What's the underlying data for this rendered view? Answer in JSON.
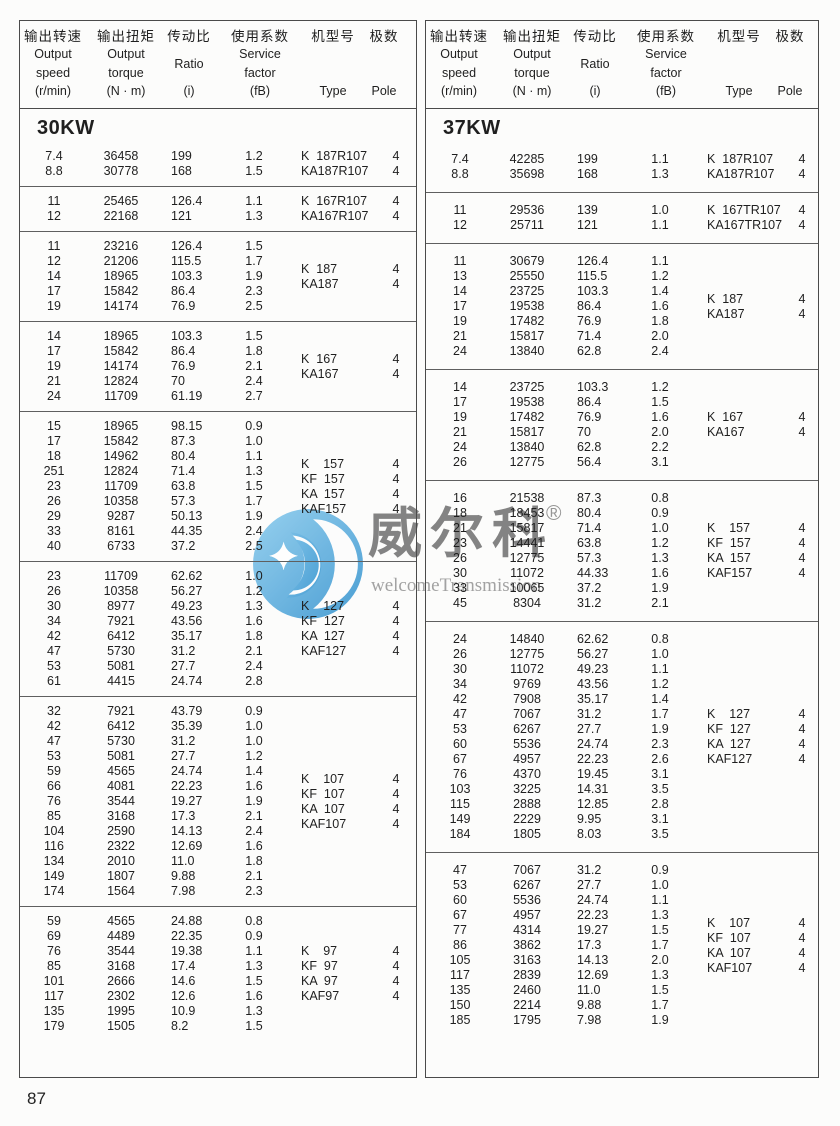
{
  "page": {
    "number": "87"
  },
  "watermark": {
    "brand_cn": "威尔科",
    "registered": "®",
    "brand_en": "welcomeTransmission",
    "logo_color_light": "#85c9ec",
    "logo_color_dark": "#3c96d0",
    "cn_text_color": "#6f6f6f",
    "en_text_color": "#a2a2a2",
    "logo_icon": "crescent-star-circle"
  },
  "header": {
    "columns": [
      {
        "cn": "输出转速",
        "lines": [
          "Output",
          "speed"
        ],
        "unit": "(r/min)",
        "key": "output-speed"
      },
      {
        "cn": "输出扭矩",
        "lines": [
          "Output",
          "torque"
        ],
        "unit": "(N · m)",
        "key": "output-torque"
      },
      {
        "cn": "传动比",
        "lines": [
          "Ratio"
        ],
        "unit": "(i)",
        "key": "ratio"
      },
      {
        "cn": "使用系数",
        "lines": [
          "Service",
          "factor"
        ],
        "unit": "(fB)",
        "key": "service-factor"
      },
      {
        "cn": "机型号",
        "lines": [],
        "unit": "Type",
        "key": "type"
      },
      {
        "cn": "极数",
        "lines": [],
        "unit": "Pole",
        "key": "pole"
      }
    ]
  },
  "sections": [
    {
      "title": "30KW",
      "blocks": [
        {
          "rows": [
            [
              "7.4",
              "36458",
              "199",
              "1.2"
            ],
            [
              "8.8",
              "30778",
              "168",
              "1.5"
            ]
          ],
          "types": [
            [
              "K  187R107",
              "4"
            ],
            [
              "KA187R107",
              "4"
            ]
          ]
        },
        {
          "rows": [
            [
              "11",
              "25465",
              "126.4",
              "1.1"
            ],
            [
              "12",
              "22168",
              "121",
              "1.3"
            ]
          ],
          "types": [
            [
              "K  167R107",
              "4"
            ],
            [
              "KA167R107",
              "4"
            ]
          ]
        },
        {
          "rows": [
            [
              "11",
              "23216",
              "126.4",
              "1.5"
            ],
            [
              "12",
              "21206",
              "115.5",
              "1.7"
            ],
            [
              "14",
              "18965",
              "103.3",
              "1.9"
            ],
            [
              "17",
              "15842",
              "86.4",
              "2.3"
            ],
            [
              "19",
              "14174",
              "76.9",
              "2.5"
            ]
          ],
          "types": [
            [
              "K  187",
              "4"
            ],
            [
              "KA187",
              "4"
            ]
          ]
        },
        {
          "rows": [
            [
              "14",
              "18965",
              "103.3",
              "1.5"
            ],
            [
              "17",
              "15842",
              "86.4",
              "1.8"
            ],
            [
              "19",
              "14174",
              "76.9",
              "2.1"
            ],
            [
              "21",
              "12824",
              "70",
              "2.4"
            ],
            [
              "24",
              "11709",
              "61.19",
              "2.7"
            ]
          ],
          "types": [
            [
              "K  167",
              "4"
            ],
            [
              "KA167",
              "4"
            ]
          ]
        },
        {
          "rows": [
            [
              "15",
              "18965",
              "98.15",
              "0.9"
            ],
            [
              "17",
              "15842",
              "87.3",
              "1.0"
            ],
            [
              "18",
              "14962",
              "80.4",
              "1.1"
            ],
            [
              "251",
              "12824",
              "71.4",
              "1.3"
            ],
            [
              "23",
              "11709",
              "63.8",
              "1.5"
            ],
            [
              "26",
              "10358",
              "57.3",
              "1.7"
            ],
            [
              "29",
              "9287",
              "50.13",
              "1.9"
            ],
            [
              "33",
              "8161",
              "44.35",
              "2.4"
            ],
            [
              "40",
              "6733",
              "37.2",
              "2.5"
            ]
          ],
          "types": [
            [
              "K    157",
              "4"
            ],
            [
              "KF  157",
              "4"
            ],
            [
              "KA  157",
              "4"
            ],
            [
              "KAF157",
              "4"
            ]
          ]
        },
        {
          "rows": [
            [
              "23",
              "11709",
              "62.62",
              "1.0"
            ],
            [
              "26",
              "10358",
              "56.27",
              "1.2"
            ],
            [
              "30",
              "8977",
              "49.23",
              "1.3"
            ],
            [
              "34",
              "7921",
              "43.56",
              "1.6"
            ],
            [
              "42",
              "6412",
              "35.17",
              "1.8"
            ],
            [
              "47",
              "5730",
              "31.2",
              "2.1"
            ],
            [
              "53",
              "5081",
              "27.7",
              "2.4"
            ],
            [
              "61",
              "4415",
              "24.74",
              "2.8"
            ]
          ],
          "types": [
            [
              "K    127",
              "4"
            ],
            [
              "KF  127",
              "4"
            ],
            [
              "KA  127",
              "4"
            ],
            [
              "KAF127",
              "4"
            ]
          ]
        },
        {
          "rows": [
            [
              "32",
              "7921",
              "43.79",
              "0.9"
            ],
            [
              "42",
              "6412",
              "35.39",
              "1.0"
            ],
            [
              "47",
              "5730",
              "31.2",
              "1.0"
            ],
            [
              "53",
              "5081",
              "27.7",
              "1.2"
            ],
            [
              "59",
              "4565",
              "24.74",
              "1.4"
            ],
            [
              "66",
              "4081",
              "22.23",
              "1.6"
            ],
            [
              "76",
              "3544",
              "19.27",
              "1.9"
            ],
            [
              "85",
              "3168",
              "17.3",
              "2.1"
            ],
            [
              "104",
              "2590",
              "14.13",
              "2.4"
            ],
            [
              "116",
              "2322",
              "12.69",
              "1.6"
            ],
            [
              "134",
              "2010",
              "11.0",
              "1.8"
            ],
            [
              "149",
              "1807",
              "9.88",
              "2.1"
            ],
            [
              "174",
              "1564",
              "7.98",
              "2.3"
            ]
          ],
          "types": [
            [
              "K    107",
              "4"
            ],
            [
              "KF  107",
              "4"
            ],
            [
              "KA  107",
              "4"
            ],
            [
              "KAF107",
              "4"
            ]
          ]
        },
        {
          "rows": [
            [
              "59",
              "4565",
              "24.88",
              "0.8"
            ],
            [
              "69",
              "4489",
              "22.35",
              "0.9"
            ],
            [
              "76",
              "3544",
              "19.38",
              "1.1"
            ],
            [
              "85",
              "3168",
              "17.4",
              "1.3"
            ],
            [
              "101",
              "2666",
              "14.6",
              "1.5"
            ],
            [
              "117",
              "2302",
              "12.6",
              "1.6"
            ],
            [
              "135",
              "1995",
              "10.9",
              "1.3"
            ],
            [
              "179",
              "1505",
              "8.2",
              "1.5"
            ]
          ],
          "types": [
            [
              "K    97",
              "4"
            ],
            [
              "KF  97",
              "4"
            ],
            [
              "KA  97",
              "4"
            ],
            [
              "KAF97",
              "4"
            ]
          ]
        }
      ]
    },
    {
      "title": "37KW",
      "blocks": [
        {
          "rows": [
            [
              "7.4",
              "42285",
              "199",
              "1.1"
            ],
            [
              "8.8",
              "35698",
              "168",
              "1.3"
            ]
          ],
          "types": [
            [
              "K  187R107",
              "4"
            ],
            [
              "KA187R107",
              "4"
            ]
          ]
        },
        {
          "rows": [
            [
              "11",
              "29536",
              "139",
              "1.0"
            ],
            [
              "12",
              "25711",
              "121",
              "1.1"
            ]
          ],
          "types": [
            [
              "K  167TR107",
              "4"
            ],
            [
              "KA167TR107",
              "4"
            ]
          ]
        },
        {
          "rows": [
            [
              "11",
              "30679",
              "126.4",
              "1.1"
            ],
            [
              "13",
              "25550",
              "115.5",
              "1.2"
            ],
            [
              "14",
              "23725",
              "103.3",
              "1.4"
            ],
            [
              "17",
              "19538",
              "86.4",
              "1.6"
            ],
            [
              "19",
              "17482",
              "76.9",
              "1.8"
            ],
            [
              "21",
              "15817",
              "71.4",
              "2.0"
            ],
            [
              "24",
              "13840",
              "62.8",
              "2.4"
            ]
          ],
          "types": [
            [
              "K  187",
              "4"
            ],
            [
              "KA187",
              "4"
            ]
          ]
        },
        {
          "rows": [
            [
              "14",
              "23725",
              "103.3",
              "1.2"
            ],
            [
              "17",
              "19538",
              "86.4",
              "1.5"
            ],
            [
              "19",
              "17482",
              "76.9",
              "1.6"
            ],
            [
              "21",
              "15817",
              "70",
              "2.0"
            ],
            [
              "24",
              "13840",
              "62.8",
              "2.2"
            ],
            [
              "26",
              "12775",
              "56.4",
              "3.1"
            ]
          ],
          "types": [
            [
              "K  167",
              "4"
            ],
            [
              "KA167",
              "4"
            ]
          ]
        },
        {
          "rows": [
            [
              "16",
              "21538",
              "87.3",
              "0.8"
            ],
            [
              "18",
              "18453",
              "80.4",
              "0.9"
            ],
            [
              "21",
              "15817",
              "71.4",
              "1.0"
            ],
            [
              "23",
              "14441",
              "63.8",
              "1.2"
            ],
            [
              "26",
              "12775",
              "57.3",
              "1.3"
            ],
            [
              "30",
              "11072",
              "44.33",
              "1.6"
            ],
            [
              "33",
              "10065",
              "37.2",
              "1.9"
            ],
            [
              "45",
              "8304",
              "31.2",
              "2.1"
            ]
          ],
          "types": [
            [
              "K    157",
              "4"
            ],
            [
              "KF  157",
              "4"
            ],
            [
              "KA  157",
              "4"
            ],
            [
              "KAF157",
              "4"
            ]
          ]
        },
        {
          "rows": [
            [
              "24",
              "14840",
              "62.62",
              "0.8"
            ],
            [
              "26",
              "12775",
              "56.27",
              "1.0"
            ],
            [
              "30",
              "11072",
              "49.23",
              "1.1"
            ],
            [
              "34",
              "9769",
              "43.56",
              "1.2"
            ],
            [
              "42",
              "7908",
              "35.17",
              "1.4"
            ],
            [
              "47",
              "7067",
              "31.2",
              "1.7"
            ],
            [
              "53",
              "6267",
              "27.7",
              "1.9"
            ],
            [
              "60",
              "5536",
              "24.74",
              "2.3"
            ],
            [
              "67",
              "4957",
              "22.23",
              "2.6"
            ],
            [
              "76",
              "4370",
              "19.45",
              "3.1"
            ],
            [
              "103",
              "3225",
              "14.31",
              "3.5"
            ],
            [
              "115",
              "2888",
              "12.85",
              "2.8"
            ],
            [
              "149",
              "2229",
              "9.95",
              "3.1"
            ],
            [
              "184",
              "1805",
              "8.03",
              "3.5"
            ]
          ],
          "types": [
            [
              "K    127",
              "4"
            ],
            [
              "KF  127",
              "4"
            ],
            [
              "KA  127",
              "4"
            ],
            [
              "KAF127",
              "4"
            ]
          ]
        },
        {
          "rows": [
            [
              "47",
              "7067",
              "31.2",
              "0.9"
            ],
            [
              "53",
              "6267",
              "27.7",
              "1.0"
            ],
            [
              "60",
              "5536",
              "24.74",
              "1.1"
            ],
            [
              "67",
              "4957",
              "22.23",
              "1.3"
            ],
            [
              "77",
              "4314",
              "19.27",
              "1.5"
            ],
            [
              "86",
              "3862",
              "17.3",
              "1.7"
            ],
            [
              "105",
              "3163",
              "14.13",
              "2.0"
            ],
            [
              "117",
              "2839",
              "12.69",
              "1.3"
            ],
            [
              "135",
              "2460",
              "11.0",
              "1.5"
            ],
            [
              "150",
              "2214",
              "9.88",
              "1.7"
            ],
            [
              "185",
              "1795",
              "7.98",
              "1.9"
            ]
          ],
          "types": [
            [
              "K    107",
              "4"
            ],
            [
              "KF  107",
              "4"
            ],
            [
              "KA  107",
              "4"
            ],
            [
              "KAF107",
              "4"
            ]
          ]
        }
      ]
    }
  ]
}
